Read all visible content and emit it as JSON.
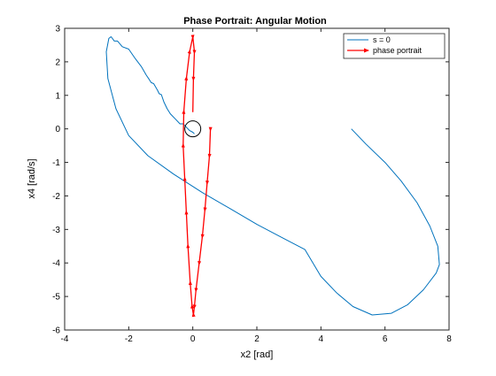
{
  "chart_data": {
    "type": "line",
    "title": "Phase Portrait: Angular Motion",
    "xlabel": "x2 [rad]",
    "ylabel": "x4 [rad/s]",
    "xlim": [
      -4,
      8
    ],
    "ylim": [
      -6,
      3
    ],
    "xticks": [
      -4,
      -2,
      0,
      2,
      4,
      6,
      8
    ],
    "yticks": [
      3,
      2,
      1,
      0,
      -1,
      -2,
      -3,
      -4,
      -5,
      -6
    ],
    "grid": false,
    "legend_position": "top-right",
    "colors": {
      "s0": "#0072BD",
      "phase": "#FF0000",
      "axes": "#262626",
      "circle": "#000000"
    },
    "series": [
      {
        "name": "s = 0",
        "style": "line",
        "x": [
          4.95,
          5.4,
          6.0,
          6.5,
          7.0,
          7.4,
          7.65,
          7.7,
          7.6,
          7.2,
          6.7,
          6.2,
          5.6,
          5.0,
          4.5,
          4.0,
          3.5,
          2.8,
          2.0,
          1.2,
          0.3,
          -0.6,
          -1.4,
          -2.0,
          -2.4,
          -2.65,
          -2.7,
          -2.62,
          -2.55,
          -2.45,
          -2.35,
          -2.2,
          -2.0,
          -1.8,
          -1.6,
          -1.45,
          -1.38,
          -1.3,
          -1.22,
          -1.1,
          -1.05,
          -0.98,
          -0.9,
          -0.8,
          -0.7,
          -0.55,
          -0.4,
          -0.3,
          -0.2,
          -0.1,
          0.0,
          0.05
        ],
        "y": [
          0.0,
          -0.45,
          -1.0,
          -1.55,
          -2.2,
          -2.9,
          -3.5,
          -4.05,
          -4.3,
          -4.8,
          -5.25,
          -5.5,
          -5.55,
          -5.3,
          -4.9,
          -4.4,
          -3.6,
          -3.25,
          -2.85,
          -2.4,
          -1.9,
          -1.35,
          -0.8,
          -0.2,
          0.6,
          1.5,
          2.3,
          2.7,
          2.75,
          2.62,
          2.62,
          2.45,
          2.38,
          2.1,
          1.85,
          1.6,
          1.5,
          1.38,
          1.35,
          1.15,
          1.05,
          1.02,
          0.8,
          0.6,
          0.45,
          0.3,
          0.15,
          0.15,
          0.05,
          -0.05,
          -0.1,
          -0.15
        ]
      },
      {
        "name": "phase portrait",
        "style": "line-arrows",
        "x": [
          0.55,
          0.52,
          0.45,
          0.38,
          0.3,
          0.2,
          0.1,
          0.05,
          0.02,
          -0.02,
          -0.08,
          -0.15,
          -0.2,
          -0.25,
          -0.3,
          -0.28,
          -0.2,
          -0.1,
          0.0,
          0.05,
          0.02,
          0.0
        ],
        "y": [
          0.0,
          -0.8,
          -1.6,
          -2.4,
          -3.2,
          -4.0,
          -4.8,
          -5.3,
          -5.55,
          -5.3,
          -4.6,
          -3.5,
          -2.5,
          -1.5,
          -0.5,
          0.5,
          1.5,
          2.3,
          2.75,
          2.3,
          1.5,
          0.5
        ]
      }
    ],
    "annotations": [
      {
        "type": "circle",
        "x": 0.0,
        "y": 0.0
      }
    ]
  }
}
